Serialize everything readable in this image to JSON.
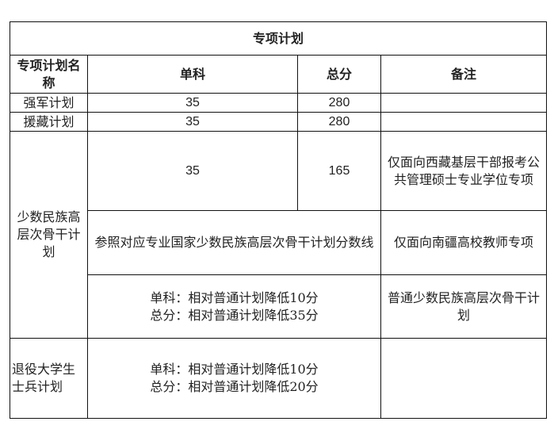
{
  "title": "专项计划",
  "headers": [
    "专项计划名称",
    "单科",
    "总分",
    "备注"
  ],
  "rows": {
    "qiangjun": {
      "name": "强军计划",
      "single": "35",
      "total": "280",
      "note": ""
    },
    "yuanzang": {
      "name": "援藏计划",
      "single": "35",
      "total": "280",
      "note": ""
    },
    "minority": {
      "name": "少数民族高层次骨干计划",
      "sub1": {
        "single": "35",
        "total": "165",
        "note": "仅面向西藏基层干部报考公共管理硕士专业学位专项"
      },
      "sub2": {
        "score": "参照对应专业国家少数民族高层次骨干计划分数线",
        "note": "仅面向南疆高校教师专项"
      },
      "sub3": {
        "line1": "单科：相对普通计划降低10分",
        "line2": "总分：相对普通计划降低35分",
        "note": "普通少数民族高层次骨干计划"
      }
    },
    "veteran": {
      "name": "退役大学生士兵计划",
      "line1": "单科：相对普通计划降低10分",
      "line2": "总分：相对普通计划降低20分",
      "note": ""
    }
  }
}
